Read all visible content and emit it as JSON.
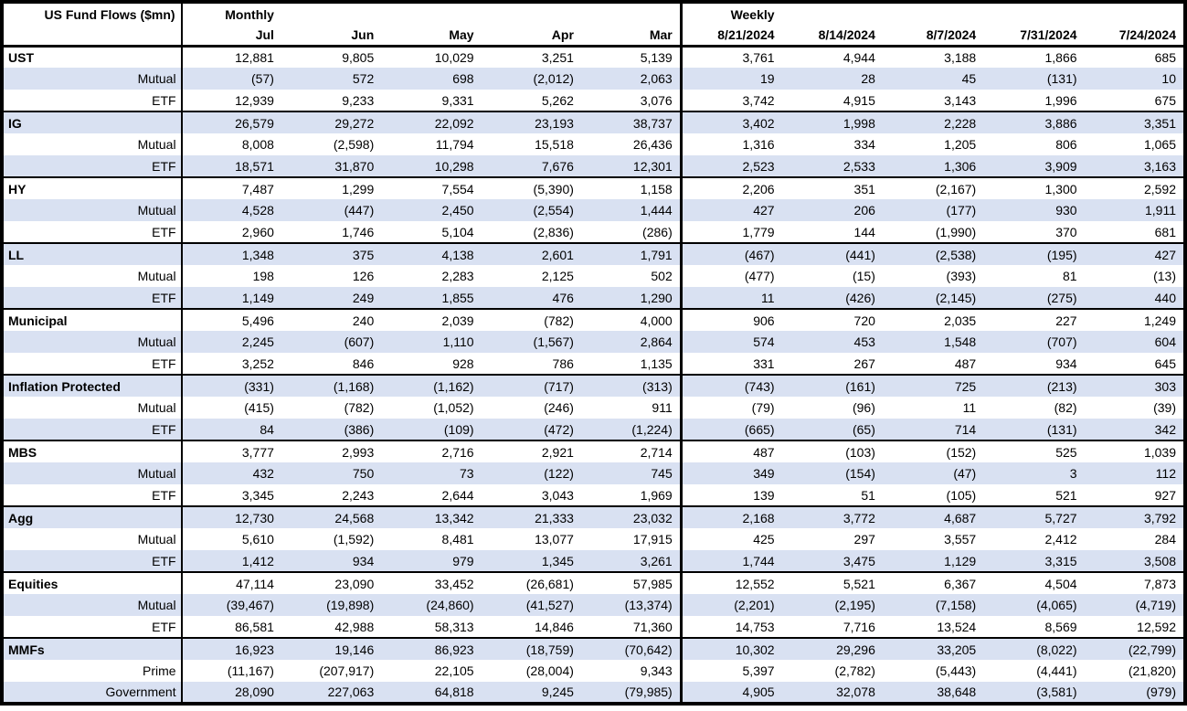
{
  "title": "US Fund Flows ($mn)",
  "colors": {
    "stripe": "#d9e1f2",
    "border": "#000000",
    "background": "#ffffff",
    "text": "#000000"
  },
  "chart_data": {
    "type": "table",
    "title": "US Fund Flows ($mn)",
    "units": "$mn",
    "negative_format": "parentheses",
    "column_groups": [
      {
        "label": "Monthly",
        "columns": [
          "Jul",
          "Jun",
          "May",
          "Apr",
          "Mar"
        ]
      },
      {
        "label": "Weekly",
        "columns": [
          "8/21/2024",
          "8/14/2024",
          "8/7/2024",
          "7/31/2024",
          "7/24/2024"
        ]
      }
    ],
    "rows": [
      {
        "label": "UST",
        "level": "group",
        "monthly": [
          "12,881",
          "9,805",
          "10,029",
          "3,251",
          "5,139"
        ],
        "weekly": [
          "3,761",
          "4,944",
          "3,188",
          "1,866",
          "685"
        ]
      },
      {
        "label": "Mutual",
        "level": "sub",
        "monthly": [
          "(57)",
          "572",
          "698",
          "(2,012)",
          "2,063"
        ],
        "weekly": [
          "19",
          "28",
          "45",
          "(131)",
          "10"
        ]
      },
      {
        "label": "ETF",
        "level": "sub",
        "monthly": [
          "12,939",
          "9,233",
          "9,331",
          "5,262",
          "3,076"
        ],
        "weekly": [
          "3,742",
          "4,915",
          "3,143",
          "1,996",
          "675"
        ]
      },
      {
        "label": "IG",
        "level": "group",
        "monthly": [
          "26,579",
          "29,272",
          "22,092",
          "23,193",
          "38,737"
        ],
        "weekly": [
          "3,402",
          "1,998",
          "2,228",
          "3,886",
          "3,351"
        ]
      },
      {
        "label": "Mutual",
        "level": "sub",
        "monthly": [
          "8,008",
          "(2,598)",
          "11,794",
          "15,518",
          "26,436"
        ],
        "weekly": [
          "1,316",
          "334",
          "1,205",
          "806",
          "1,065"
        ]
      },
      {
        "label": "ETF",
        "level": "sub",
        "monthly": [
          "18,571",
          "31,870",
          "10,298",
          "7,676",
          "12,301"
        ],
        "weekly": [
          "2,523",
          "2,533",
          "1,306",
          "3,909",
          "3,163"
        ]
      },
      {
        "label": "HY",
        "level": "group",
        "monthly": [
          "7,487",
          "1,299",
          "7,554",
          "(5,390)",
          "1,158"
        ],
        "weekly": [
          "2,206",
          "351",
          "(2,167)",
          "1,300",
          "2,592"
        ]
      },
      {
        "label": "Mutual",
        "level": "sub",
        "monthly": [
          "4,528",
          "(447)",
          "2,450",
          "(2,554)",
          "1,444"
        ],
        "weekly": [
          "427",
          "206",
          "(177)",
          "930",
          "1,911"
        ]
      },
      {
        "label": "ETF",
        "level": "sub",
        "monthly": [
          "2,960",
          "1,746",
          "5,104",
          "(2,836)",
          "(286)"
        ],
        "weekly": [
          "1,779",
          "144",
          "(1,990)",
          "370",
          "681"
        ]
      },
      {
        "label": "LL",
        "level": "group",
        "monthly": [
          "1,348",
          "375",
          "4,138",
          "2,601",
          "1,791"
        ],
        "weekly": [
          "(467)",
          "(441)",
          "(2,538)",
          "(195)",
          "427"
        ]
      },
      {
        "label": "Mutual",
        "level": "sub",
        "monthly": [
          "198",
          "126",
          "2,283",
          "2,125",
          "502"
        ],
        "weekly": [
          "(477)",
          "(15)",
          "(393)",
          "81",
          "(13)"
        ]
      },
      {
        "label": "ETF",
        "level": "sub",
        "monthly": [
          "1,149",
          "249",
          "1,855",
          "476",
          "1,290"
        ],
        "weekly": [
          "11",
          "(426)",
          "(2,145)",
          "(275)",
          "440"
        ]
      },
      {
        "label": "Municipal",
        "level": "group",
        "monthly": [
          "5,496",
          "240",
          "2,039",
          "(782)",
          "4,000"
        ],
        "weekly": [
          "906",
          "720",
          "2,035",
          "227",
          "1,249"
        ]
      },
      {
        "label": "Mutual",
        "level": "sub",
        "monthly": [
          "2,245",
          "(607)",
          "1,110",
          "(1,567)",
          "2,864"
        ],
        "weekly": [
          "574",
          "453",
          "1,548",
          "(707)",
          "604"
        ]
      },
      {
        "label": "ETF",
        "level": "sub",
        "monthly": [
          "3,252",
          "846",
          "928",
          "786",
          "1,135"
        ],
        "weekly": [
          "331",
          "267",
          "487",
          "934",
          "645"
        ]
      },
      {
        "label": "Inflation Protected",
        "level": "group",
        "monthly": [
          "(331)",
          "(1,168)",
          "(1,162)",
          "(717)",
          "(313)"
        ],
        "weekly": [
          "(743)",
          "(161)",
          "725",
          "(213)",
          "303"
        ]
      },
      {
        "label": "Mutual",
        "level": "sub",
        "monthly": [
          "(415)",
          "(782)",
          "(1,052)",
          "(246)",
          "911"
        ],
        "weekly": [
          "(79)",
          "(96)",
          "11",
          "(82)",
          "(39)"
        ]
      },
      {
        "label": "ETF",
        "level": "sub",
        "monthly": [
          "84",
          "(386)",
          "(109)",
          "(472)",
          "(1,224)"
        ],
        "weekly": [
          "(665)",
          "(65)",
          "714",
          "(131)",
          "342"
        ]
      },
      {
        "label": "MBS",
        "level": "group",
        "monthly": [
          "3,777",
          "2,993",
          "2,716",
          "2,921",
          "2,714"
        ],
        "weekly": [
          "487",
          "(103)",
          "(152)",
          "525",
          "1,039"
        ]
      },
      {
        "label": "Mutual",
        "level": "sub",
        "monthly": [
          "432",
          "750",
          "73",
          "(122)",
          "745"
        ],
        "weekly": [
          "349",
          "(154)",
          "(47)",
          "3",
          "112"
        ]
      },
      {
        "label": "ETF",
        "level": "sub",
        "monthly": [
          "3,345",
          "2,243",
          "2,644",
          "3,043",
          "1,969"
        ],
        "weekly": [
          "139",
          "51",
          "(105)",
          "521",
          "927"
        ]
      },
      {
        "label": "Agg",
        "level": "group",
        "monthly": [
          "12,730",
          "24,568",
          "13,342",
          "21,333",
          "23,032"
        ],
        "weekly": [
          "2,168",
          "3,772",
          "4,687",
          "5,727",
          "3,792"
        ]
      },
      {
        "label": "Mutual",
        "level": "sub",
        "monthly": [
          "5,610",
          "(1,592)",
          "8,481",
          "13,077",
          "17,915"
        ],
        "weekly": [
          "425",
          "297",
          "3,557",
          "2,412",
          "284"
        ]
      },
      {
        "label": "ETF",
        "level": "sub",
        "monthly": [
          "1,412",
          "934",
          "979",
          "1,345",
          "3,261"
        ],
        "weekly": [
          "1,744",
          "3,475",
          "1,129",
          "3,315",
          "3,508"
        ]
      },
      {
        "label": "Equities",
        "level": "group",
        "monthly": [
          "47,114",
          "23,090",
          "33,452",
          "(26,681)",
          "57,985"
        ],
        "weekly": [
          "12,552",
          "5,521",
          "6,367",
          "4,504",
          "7,873"
        ]
      },
      {
        "label": "Mutual",
        "level": "sub",
        "monthly": [
          "(39,467)",
          "(19,898)",
          "(24,860)",
          "(41,527)",
          "(13,374)"
        ],
        "weekly": [
          "(2,201)",
          "(2,195)",
          "(7,158)",
          "(4,065)",
          "(4,719)"
        ]
      },
      {
        "label": "ETF",
        "level": "sub",
        "monthly": [
          "86,581",
          "42,988",
          "58,313",
          "14,846",
          "71,360"
        ],
        "weekly": [
          "14,753",
          "7,716",
          "13,524",
          "8,569",
          "12,592"
        ]
      },
      {
        "label": "MMFs",
        "level": "group",
        "monthly": [
          "16,923",
          "19,146",
          "86,923",
          "(18,759)",
          "(70,642)"
        ],
        "weekly": [
          "10,302",
          "29,296",
          "33,205",
          "(8,022)",
          "(22,799)"
        ]
      },
      {
        "label": "Prime",
        "level": "sub",
        "monthly": [
          "(11,167)",
          "(207,917)",
          "22,105",
          "(28,004)",
          "9,343"
        ],
        "weekly": [
          "5,397",
          "(2,782)",
          "(5,443)",
          "(4,441)",
          "(21,820)"
        ]
      },
      {
        "label": "Government",
        "level": "sub",
        "monthly": [
          "28,090",
          "227,063",
          "64,818",
          "9,245",
          "(79,985)"
        ],
        "weekly": [
          "4,905",
          "32,078",
          "38,648",
          "(3,581)",
          "(979)"
        ]
      }
    ]
  }
}
